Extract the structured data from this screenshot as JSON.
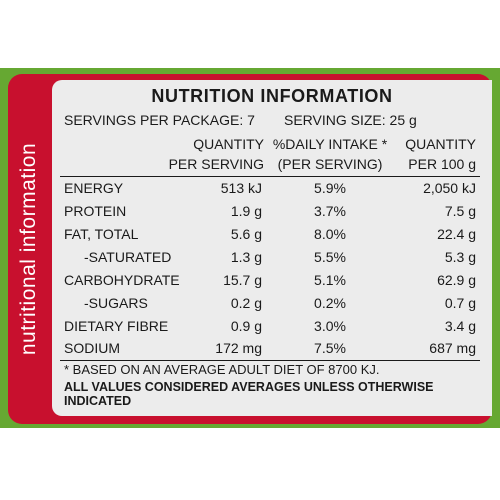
{
  "side_label": "nutritional information",
  "title": "NUTRITION INFORMATION",
  "servings_per_package": "SERVINGS PER PACKAGE: 7",
  "serving_size": "SERVING SIZE: 25 g",
  "columns": {
    "per_serving_line1": "QUANTITY",
    "per_serving_line2": "PER SERVING",
    "daily_intake_line1": "%DAILY INTAKE *",
    "daily_intake_line2": "(PER SERVING)",
    "per_100g_line1": "QUANTITY",
    "per_100g_line2": "PER 100 g"
  },
  "rows": [
    {
      "name": "ENERGY",
      "per_serving": "513 kJ",
      "daily_intake": "5.9%",
      "per_100g": "2,050 kJ"
    },
    {
      "name": "PROTEIN",
      "per_serving": "1.9 g",
      "daily_intake": "3.7%",
      "per_100g": "7.5 g"
    },
    {
      "name": "FAT, TOTAL",
      "per_serving": "5.6 g",
      "daily_intake": "8.0%",
      "per_100g": "22.4 g"
    },
    {
      "name": "-SATURATED",
      "per_serving": "1.3 g",
      "daily_intake": "5.5%",
      "per_100g": "5.3 g"
    },
    {
      "name": "CARBOHYDRATE",
      "per_serving": "15.7 g",
      "daily_intake": "5.1%",
      "per_100g": "62.9 g"
    },
    {
      "name": "-SUGARS",
      "per_serving": "0.2 g",
      "daily_intake": "0.2%",
      "per_100g": "0.7 g"
    },
    {
      "name": "DIETARY FIBRE",
      "per_serving": "0.9 g",
      "daily_intake": "3.0%",
      "per_100g": "3.4 g"
    },
    {
      "name": "SODIUM",
      "per_serving": "172 mg",
      "daily_intake": "7.5%",
      "per_100g": "687 mg"
    }
  ],
  "footnote": "* BASED ON AN AVERAGE ADULT DIET OF 8700 KJ.",
  "disclaimer": "ALL VALUES CONSIDERED AVERAGES UNLESS OTHERWISE INDICATED",
  "colors": {
    "panel_red": "#c8102e",
    "package_green": "#66a832",
    "label_bg": "#ececec"
  }
}
